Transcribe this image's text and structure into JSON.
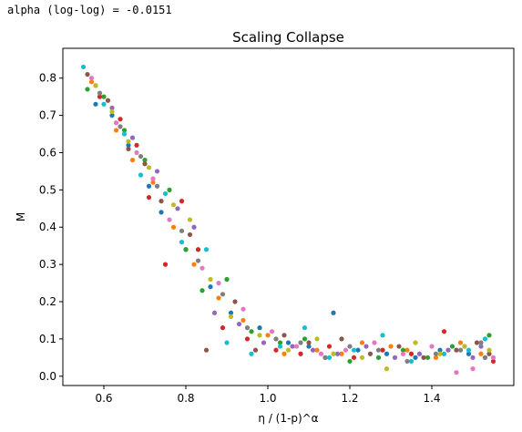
{
  "header": {
    "text": "alpha (log-log) = -0.0151"
  },
  "chart_data": {
    "type": "scatter",
    "title": "Scaling Collapse",
    "xlabel": "η / (1-p)^α",
    "ylabel": "M",
    "xlim": [
      0.5,
      1.6
    ],
    "ylim": [
      -0.025,
      0.88
    ],
    "xticks": [
      0.6,
      0.8,
      1.0,
      1.2,
      1.4
    ],
    "yticks": [
      0.0,
      0.1,
      0.2,
      0.3,
      0.4,
      0.5,
      0.6,
      0.7,
      0.8
    ],
    "xtick_labels": [
      "0.6",
      "0.8",
      "1.0",
      "1.2",
      "1.4"
    ],
    "ytick_labels": [
      "0.0",
      "0.1",
      "0.2",
      "0.3",
      "0.4",
      "0.5",
      "0.6",
      "0.7",
      "0.8"
    ],
    "grid": false,
    "legend": "none",
    "colors": [
      "#1f77b4",
      "#ff7f0e",
      "#2ca02c",
      "#d62728",
      "#9467bd",
      "#8c564b",
      "#e377c2",
      "#7f7f7f",
      "#bcbd22",
      "#17becf"
    ],
    "series": [
      {
        "color": "#1f77b4",
        "x": [
          0.58,
          0.62,
          0.66,
          0.71,
          0.74,
          0.8,
          0.86,
          0.91,
          0.98,
          1.05,
          1.1,
          1.16,
          1.22,
          1.29,
          1.36,
          1.42,
          1.49,
          1.53
        ],
        "y": [
          0.73,
          0.7,
          0.62,
          0.51,
          0.44,
          0.34,
          0.24,
          0.17,
          0.13,
          0.09,
          0.08,
          0.17,
          0.07,
          0.06,
          0.05,
          0.07,
          0.06,
          0.05
        ]
      },
      {
        "color": "#ff7f0e",
        "x": [
          0.57,
          0.63,
          0.67,
          0.72,
          0.77,
          0.82,
          0.88,
          0.94,
          1.0,
          1.04,
          1.12,
          1.18,
          1.23,
          1.3,
          1.34,
          1.41,
          1.47,
          1.52
        ],
        "y": [
          0.79,
          0.66,
          0.58,
          0.52,
          0.4,
          0.3,
          0.21,
          0.15,
          0.11,
          0.06,
          0.07,
          0.06,
          0.09,
          0.08,
          0.07,
          0.05,
          0.09,
          0.06
        ]
      },
      {
        "color": "#2ca02c",
        "x": [
          0.56,
          0.6,
          0.65,
          0.7,
          0.76,
          0.8,
          0.84,
          0.9,
          0.96,
          1.03,
          1.09,
          1.14,
          1.2,
          1.27,
          1.33,
          1.39,
          1.45,
          1.54
        ],
        "y": [
          0.77,
          0.75,
          0.66,
          0.58,
          0.5,
          0.34,
          0.23,
          0.26,
          0.12,
          0.09,
          0.1,
          0.05,
          0.04,
          0.05,
          0.07,
          0.05,
          0.08,
          0.11
        ]
      },
      {
        "color": "#d62728",
        "x": [
          0.59,
          0.64,
          0.68,
          0.71,
          0.75,
          0.79,
          0.83,
          0.89,
          0.95,
          1.02,
          1.08,
          1.15,
          1.21,
          1.28,
          1.35,
          1.43,
          1.48,
          1.55
        ],
        "y": [
          0.75,
          0.69,
          0.62,
          0.48,
          0.3,
          0.47,
          0.34,
          0.13,
          0.1,
          0.07,
          0.06,
          0.08,
          0.05,
          0.07,
          0.06,
          0.12,
          0.08,
          0.04
        ]
      },
      {
        "color": "#9467bd",
        "x": [
          0.58,
          0.62,
          0.67,
          0.73,
          0.78,
          0.82,
          0.87,
          0.93,
          0.99,
          1.06,
          1.11,
          1.17,
          1.24,
          1.31,
          1.37,
          1.44,
          1.5,
          1.52
        ],
        "y": [
          0.78,
          0.72,
          0.64,
          0.55,
          0.45,
          0.4,
          0.17,
          0.14,
          0.09,
          0.08,
          0.07,
          0.06,
          0.08,
          0.05,
          0.06,
          0.07,
          0.05,
          0.08
        ]
      },
      {
        "color": "#8c564b",
        "x": [
          0.56,
          0.61,
          0.66,
          0.7,
          0.74,
          0.81,
          0.85,
          0.92,
          0.97,
          1.04,
          1.1,
          1.18,
          1.25,
          1.32,
          1.38,
          1.46,
          1.51,
          1.54
        ],
        "y": [
          0.81,
          0.74,
          0.61,
          0.57,
          0.47,
          0.38,
          0.07,
          0.2,
          0.07,
          0.11,
          0.09,
          0.1,
          0.06,
          0.08,
          0.05,
          0.07,
          0.09,
          0.06
        ]
      },
      {
        "color": "#e377c2",
        "x": [
          0.57,
          0.63,
          0.68,
          0.72,
          0.76,
          0.84,
          0.88,
          0.94,
          1.01,
          1.07,
          1.13,
          1.19,
          1.26,
          1.33,
          1.4,
          1.46,
          1.5,
          1.55
        ],
        "y": [
          0.8,
          0.68,
          0.6,
          0.53,
          0.42,
          0.29,
          0.25,
          0.18,
          0.12,
          0.08,
          0.06,
          0.07,
          0.09,
          0.06,
          0.08,
          0.01,
          0.02,
          0.05
        ]
      },
      {
        "color": "#7f7f7f",
        "x": [
          0.59,
          0.64,
          0.69,
          0.73,
          0.79,
          0.83,
          0.89,
          0.95,
          1.02,
          1.08,
          1.14,
          1.2,
          1.27,
          1.34,
          1.41,
          1.47,
          1.53,
          1.52
        ],
        "y": [
          0.76,
          0.67,
          0.59,
          0.51,
          0.39,
          0.31,
          0.22,
          0.13,
          0.1,
          0.09,
          0.05,
          0.08,
          0.07,
          0.04,
          0.06,
          0.07,
          0.05,
          0.09
        ]
      },
      {
        "color": "#bcbd22",
        "x": [
          0.58,
          0.62,
          0.66,
          0.71,
          0.77,
          0.81,
          0.86,
          0.91,
          0.98,
          1.05,
          1.12,
          1.16,
          1.23,
          1.29,
          1.36,
          1.42,
          1.48,
          1.54
        ],
        "y": [
          0.78,
          0.71,
          0.63,
          0.56,
          0.46,
          0.42,
          0.26,
          0.16,
          0.11,
          0.07,
          0.1,
          0.06,
          0.05,
          0.02,
          0.09,
          0.06,
          0.08,
          0.07
        ]
      },
      {
        "color": "#17becf",
        "x": [
          0.55,
          0.6,
          0.65,
          0.69,
          0.75,
          0.79,
          0.85,
          0.9,
          0.96,
          1.03,
          1.09,
          1.15,
          1.21,
          1.28,
          1.35,
          1.43,
          1.49,
          1.53
        ],
        "y": [
          0.83,
          0.73,
          0.65,
          0.54,
          0.49,
          0.36,
          0.34,
          0.09,
          0.06,
          0.08,
          0.13,
          0.05,
          0.07,
          0.11,
          0.04,
          0.06,
          0.07,
          0.1
        ]
      }
    ]
  }
}
